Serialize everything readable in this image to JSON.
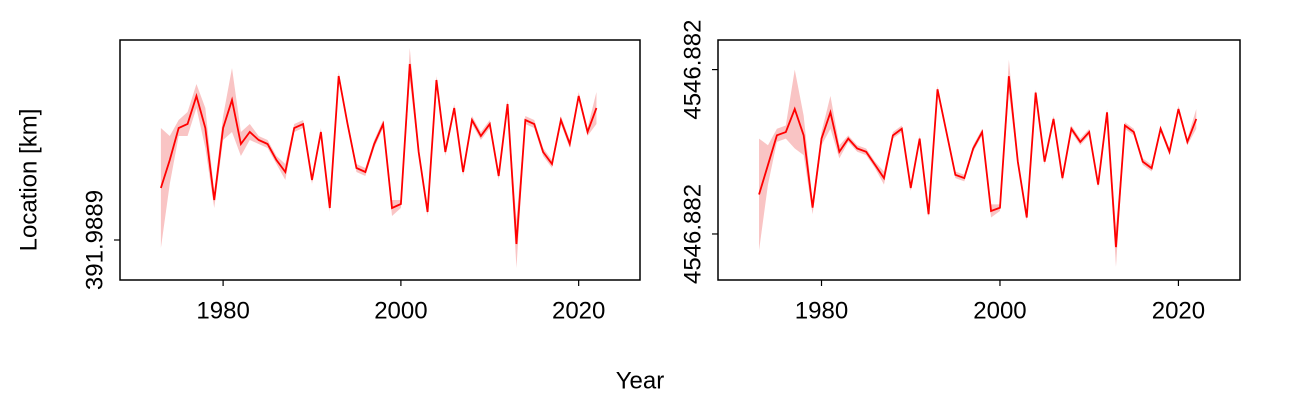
{
  "shared": {
    "xlabel": "Year",
    "ylabel": "Location [km]"
  },
  "chart_data": [
    {
      "type": "line",
      "color": "#ff0000",
      "band_color": "#f9c4c4",
      "x": [
        1973,
        1974,
        1975,
        1976,
        1977,
        1978,
        1979,
        1980,
        1981,
        1982,
        1983,
        1984,
        1985,
        1986,
        1987,
        1988,
        1989,
        1990,
        1991,
        1992,
        1993,
        1994,
        1995,
        1996,
        1997,
        1998,
        1999,
        2000,
        2001,
        2002,
        2003,
        2004,
        2005,
        2006,
        2007,
        2008,
        2009,
        2010,
        2011,
        2012,
        2013,
        2014,
        2015,
        2016,
        2017,
        2018,
        2019,
        2020,
        2021,
        2022
      ],
      "values": [
        391.988913,
        391.98892,
        391.988928,
        391.988929,
        391.988936,
        391.988928,
        391.98891,
        391.988928,
        391.988935,
        391.988924,
        391.988927,
        391.988925,
        391.988924,
        391.98892,
        391.988917,
        391.988928,
        391.988929,
        391.988915,
        391.988927,
        391.988908,
        391.988941,
        391.988929,
        391.988918,
        391.988917,
        391.988924,
        391.988929,
        391.988908,
        391.988909,
        391.988944,
        391.988922,
        391.988907,
        391.98894,
        391.988922,
        391.988933,
        391.988917,
        391.98893,
        391.988926,
        391.988929,
        391.988916,
        391.988934,
        391.988899,
        391.98893,
        391.988929,
        391.988922,
        391.988919,
        391.98893,
        391.988924,
        391.988936,
        391.988927,
        391.988933
      ],
      "errors": [
        1.5e-05,
        6e-06,
        2e-06,
        3e-06,
        3e-06,
        5e-06,
        2e-06,
        3e-06,
        8e-06,
        3e-06,
        2e-06,
        1e-06,
        1e-06,
        1e-06,
        2e-06,
        1e-06,
        1e-06,
        1e-06,
        1e-06,
        1e-06,
        1e-06,
        1e-06,
        1e-06,
        1e-06,
        1e-06,
        1e-06,
        2e-06,
        1e-06,
        4e-06,
        1e-06,
        1e-06,
        1e-06,
        1e-06,
        1e-06,
        1e-06,
        1e-06,
        1e-06,
        1e-06,
        1e-06,
        1e-06,
        6e-06,
        1e-06,
        1e-06,
        1e-06,
        1e-06,
        1e-06,
        1e-06,
        1e-06,
        1e-06,
        4e-06
      ],
      "xlim": [
        1968.4,
        2026.9
      ],
      "xticks": [
        1980,
        2000,
        2020
      ],
      "ylim": [
        391.98889,
        391.98895
      ],
      "yticks": [
        {
          "value": 391.9889,
          "label": "391.9889"
        }
      ]
    },
    {
      "type": "line",
      "color": "#ff0000",
      "band_color": "#f9c4c4",
      "x": [
        1973,
        1974,
        1975,
        1976,
        1977,
        1978,
        1979,
        1980,
        1981,
        1982,
        1983,
        1984,
        1985,
        1986,
        1987,
        1988,
        1989,
        1990,
        1991,
        1992,
        1993,
        1994,
        1995,
        1996,
        1997,
        1998,
        1999,
        2000,
        2001,
        2002,
        2003,
        2004,
        2005,
        2006,
        2007,
        2008,
        2009,
        2010,
        2011,
        2012,
        2013,
        2014,
        2015,
        2016,
        2017,
        2018,
        2019,
        2020,
        2021,
        2022
      ],
      "values": [
        4546.88192,
        4546.88201,
        4546.8821,
        4546.88211,
        4546.88218,
        4546.8821,
        4546.88188,
        4546.88209,
        4546.88217,
        4546.88205,
        4546.88209,
        4546.88206,
        4546.88205,
        4546.88201,
        4546.88197,
        4546.8821,
        4546.88212,
        4546.88194,
        4546.88209,
        4546.88186,
        4546.88224,
        4546.88211,
        4546.88198,
        4546.88197,
        4546.88206,
        4546.88211,
        4546.88187,
        4546.88188,
        4546.88228,
        4546.88202,
        4546.88185,
        4546.88223,
        4546.88202,
        4546.88215,
        4546.88197,
        4546.88212,
        4546.88208,
        4546.88211,
        4546.88195,
        4546.88217,
        4546.88176,
        4546.88213,
        4546.88211,
        4546.88202,
        4546.882,
        4546.88212,
        4546.88205,
        4546.88218,
        4546.88208,
        4546.88215
      ],
      "errors": [
        0.00017,
        6e-05,
        2e-05,
        2e-05,
        0.00012,
        6e-05,
        2e-05,
        2e-05,
        5e-05,
        2e-05,
        1e-05,
        1e-05,
        1e-05,
        1e-05,
        2e-05,
        1e-05,
        1e-05,
        1e-05,
        1e-05,
        1e-05,
        1e-05,
        1e-05,
        1e-05,
        1e-05,
        1e-05,
        1e-05,
        2e-05,
        1e-05,
        5e-05,
        1e-05,
        1e-05,
        1e-05,
        1e-05,
        1e-05,
        1e-05,
        1e-05,
        1e-05,
        1e-05,
        1e-05,
        1e-05,
        6e-05,
        1e-05,
        1e-05,
        1e-05,
        1e-05,
        1e-05,
        1e-05,
        1e-05,
        1e-05,
        3e-05
      ],
      "xlim": [
        1968.4,
        2026.9
      ],
      "xticks": [
        1980,
        2000,
        2020
      ],
      "ylim": [
        4546.88166,
        4546.88239
      ],
      "yticks": [
        {
          "value": 4546.8818,
          "label": "4546.882"
        },
        {
          "value": 4546.8823,
          "label": "4546.882"
        }
      ]
    }
  ]
}
